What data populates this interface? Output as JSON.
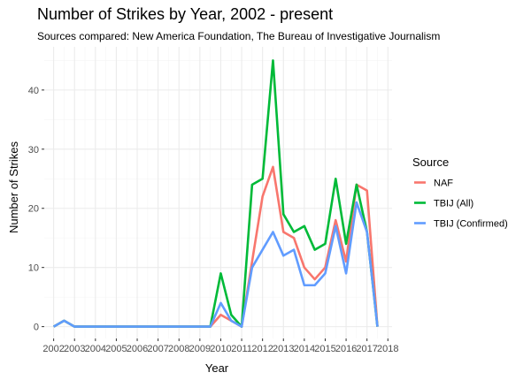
{
  "chart_data": {
    "type": "line",
    "title": "Number of Strikes by Year, 2002 - present",
    "subtitle": "Sources compared: New America Foundation, The Bureau of Investigative Journalism",
    "xlabel": "Year",
    "ylabel": "Number of Strikes",
    "xlim": [
      2002,
      2018
    ],
    "ylim": [
      0,
      45
    ],
    "x_ticks": [
      "2002",
      "2003",
      "2004",
      "2005",
      "2006",
      "2007",
      "2008",
      "2009",
      "2010",
      "2011",
      "2012",
      "2013",
      "2014",
      "2015",
      "2016",
      "2017",
      "2018"
    ],
    "y_ticks": [
      "0",
      "10",
      "20",
      "30",
      "40"
    ],
    "grid": true,
    "legend_title": "Source",
    "legend_position": "right",
    "series": [
      {
        "name": "NAF",
        "color": "#F8766D",
        "points": [
          [
            2002,
            0
          ],
          [
            2002.5,
            1
          ],
          [
            2003,
            0
          ],
          [
            2004,
            0
          ],
          [
            2005,
            0
          ],
          [
            2006,
            0
          ],
          [
            2007,
            0
          ],
          [
            2008,
            0
          ],
          [
            2009,
            0
          ],
          [
            2009.5,
            0
          ],
          [
            2010,
            2
          ],
          [
            2010.5,
            1
          ],
          [
            2011,
            0
          ],
          [
            2011.5,
            11
          ],
          [
            2012,
            22
          ],
          [
            2012.5,
            27
          ],
          [
            2013,
            16
          ],
          [
            2013.5,
            15
          ],
          [
            2014,
            10
          ],
          [
            2014.5,
            8
          ],
          [
            2015,
            10
          ],
          [
            2015.5,
            18
          ],
          [
            2016,
            11
          ],
          [
            2016.5,
            24
          ],
          [
            2017,
            23
          ],
          [
            2017.5,
            0
          ]
        ]
      },
      {
        "name": "TBIJ (All)",
        "color": "#00BA38",
        "points": [
          [
            2002,
            0
          ],
          [
            2002.5,
            1
          ],
          [
            2003,
            0
          ],
          [
            2004,
            0
          ],
          [
            2005,
            0
          ],
          [
            2006,
            0
          ],
          [
            2007,
            0
          ],
          [
            2008,
            0
          ],
          [
            2009,
            0
          ],
          [
            2009.5,
            0
          ],
          [
            2010,
            9
          ],
          [
            2010.5,
            2
          ],
          [
            2011,
            0
          ],
          [
            2011.5,
            24
          ],
          [
            2012,
            25
          ],
          [
            2012.5,
            45
          ],
          [
            2013,
            19
          ],
          [
            2013.5,
            16
          ],
          [
            2014,
            17
          ],
          [
            2014.5,
            13
          ],
          [
            2015,
            14
          ],
          [
            2015.5,
            25
          ],
          [
            2016,
            14
          ],
          [
            2016.5,
            24
          ],
          [
            2017,
            16
          ],
          [
            2017.5,
            0
          ]
        ]
      },
      {
        "name": "TBIJ (Confirmed)",
        "color": "#619CFF",
        "points": [
          [
            2002,
            0
          ],
          [
            2002.5,
            1
          ],
          [
            2003,
            0
          ],
          [
            2004,
            0
          ],
          [
            2005,
            0
          ],
          [
            2006,
            0
          ],
          [
            2007,
            0
          ],
          [
            2008,
            0
          ],
          [
            2009,
            0
          ],
          [
            2009.5,
            0
          ],
          [
            2010,
            4
          ],
          [
            2010.5,
            1
          ],
          [
            2011,
            0
          ],
          [
            2011.5,
            10
          ],
          [
            2012,
            13
          ],
          [
            2012.5,
            16
          ],
          [
            2013,
            12
          ],
          [
            2013.5,
            13
          ],
          [
            2014,
            7
          ],
          [
            2014.5,
            7
          ],
          [
            2015,
            9
          ],
          [
            2015.5,
            17
          ],
          [
            2016,
            9
          ],
          [
            2016.5,
            21
          ],
          [
            2017,
            16
          ],
          [
            2017.5,
            0
          ]
        ]
      }
    ]
  },
  "colors": {
    "panel_background": "#ffffff",
    "grid_major": "#ebebeb",
    "grid_minor": "#f5f5f5",
    "axis_line": "#333333"
  }
}
